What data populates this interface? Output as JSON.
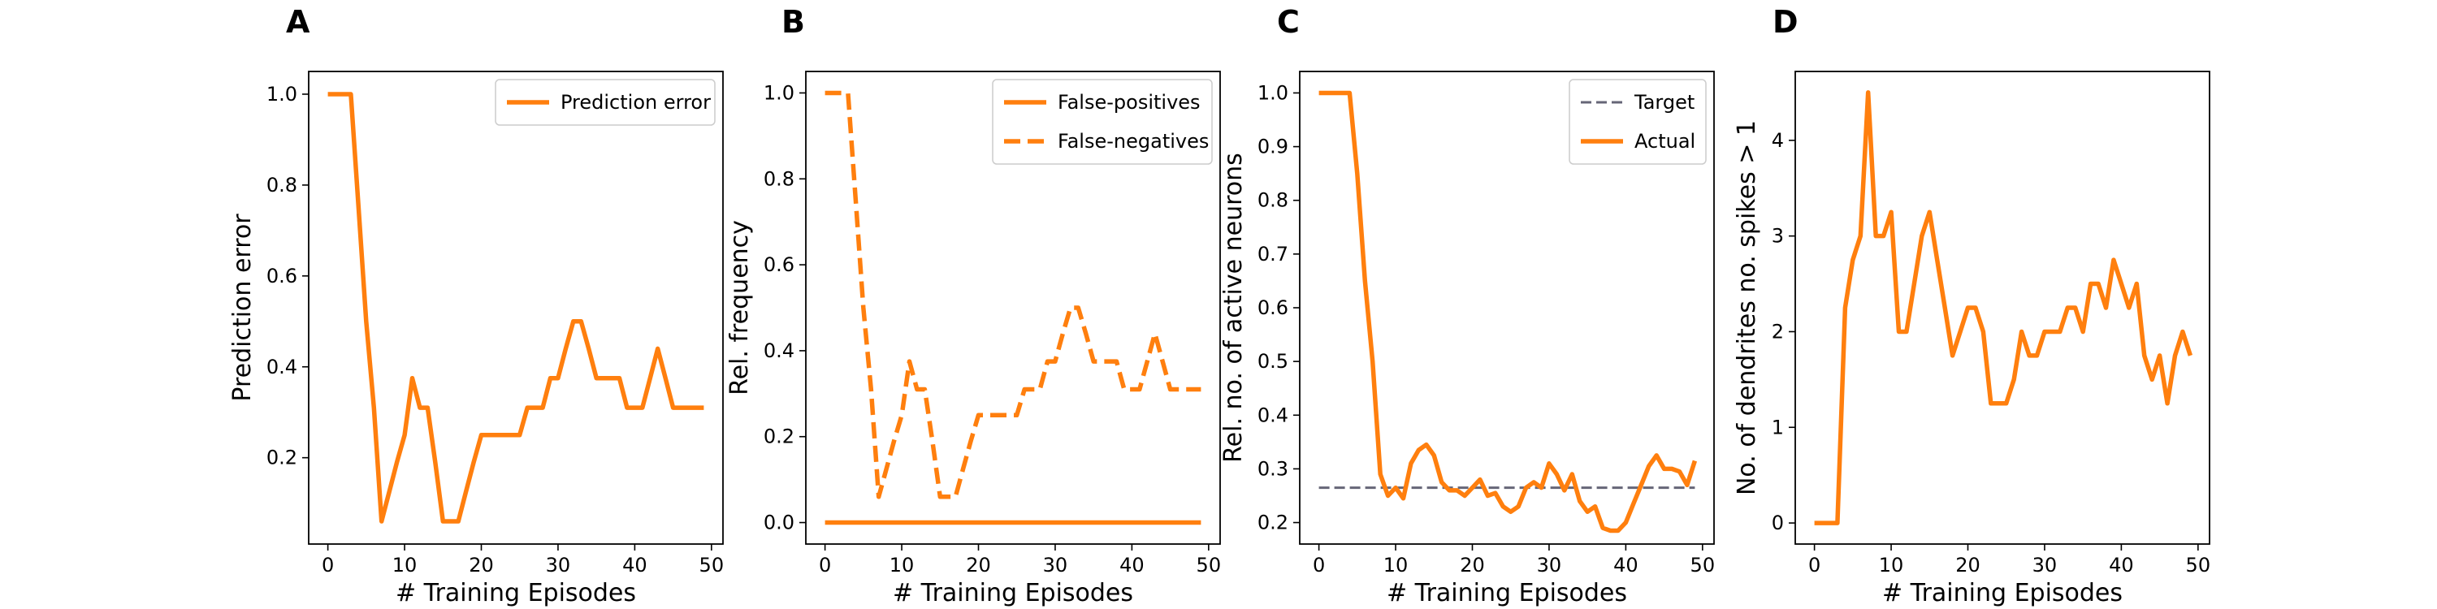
{
  "colors": {
    "orange": "#ff7f0e",
    "target": "#666677",
    "axis": "#000000"
  },
  "chart_data": [
    {
      "panel": "A",
      "type": "line",
      "xlabel": "# Training Episodes",
      "ylabel": "Prediction error",
      "xlim": [
        -2.5,
        51.5
      ],
      "ylim": [
        0.01,
        1.05
      ],
      "xticks": [
        0,
        10,
        20,
        30,
        40,
        50
      ],
      "yticks": [
        0.2,
        0.4,
        0.6,
        0.8,
        1.0
      ],
      "ytick_labels": [
        "0.2",
        "0.4",
        "0.6",
        "0.8",
        "1.0"
      ],
      "legend": "top-right",
      "series": [
        {
          "name": "Prediction error",
          "style": "solid",
          "x": [
            0,
            1,
            2,
            3,
            4,
            5,
            6,
            7,
            8,
            9,
            10,
            11,
            12,
            13,
            14,
            15,
            16,
            17,
            18,
            19,
            20,
            21,
            22,
            23,
            24,
            25,
            26,
            27,
            28,
            29,
            30,
            31,
            32,
            33,
            34,
            35,
            36,
            37,
            38,
            39,
            40,
            41,
            42,
            43,
            44,
            45,
            46,
            47,
            48,
            49
          ],
          "y": [
            1.0,
            1.0,
            1.0,
            1.0,
            0.75,
            0.5,
            0.31,
            0.06,
            0.125,
            0.19,
            0.25,
            0.375,
            0.31,
            0.31,
            0.19,
            0.06,
            0.06,
            0.06,
            0.125,
            0.19,
            0.25,
            0.25,
            0.25,
            0.25,
            0.25,
            0.25,
            0.31,
            0.31,
            0.31,
            0.375,
            0.375,
            0.44,
            0.5,
            0.5,
            0.44,
            0.375,
            0.375,
            0.375,
            0.375,
            0.31,
            0.31,
            0.31,
            0.375,
            0.44,
            0.375,
            0.31,
            0.31,
            0.31,
            0.31,
            0.31
          ]
        }
      ]
    },
    {
      "panel": "B",
      "type": "line",
      "xlabel": "# Training Episodes",
      "ylabel": "Rel. frequency",
      "xlim": [
        -2.5,
        51.5
      ],
      "ylim": [
        -0.05,
        1.05
      ],
      "xticks": [
        0,
        10,
        20,
        30,
        40,
        50
      ],
      "yticks": [
        0.0,
        0.2,
        0.4,
        0.6,
        0.8,
        1.0
      ],
      "ytick_labels": [
        "0.0",
        "0.2",
        "0.4",
        "0.6",
        "0.8",
        "1.0"
      ],
      "legend": "top-right",
      "series": [
        {
          "name": "False-positives",
          "style": "solid",
          "x": [
            0,
            49
          ],
          "y": [
            0.0,
            0.0
          ]
        },
        {
          "name": "False-negatives",
          "style": "dashed",
          "x": [
            0,
            1,
            2,
            3,
            4,
            5,
            6,
            7,
            8,
            9,
            10,
            11,
            12,
            13,
            14,
            15,
            16,
            17,
            18,
            19,
            20,
            21,
            22,
            23,
            24,
            25,
            26,
            27,
            28,
            29,
            30,
            31,
            32,
            33,
            34,
            35,
            36,
            37,
            38,
            39,
            40,
            41,
            42,
            43,
            44,
            45,
            46,
            47,
            48,
            49
          ],
          "y": [
            1.0,
            1.0,
            1.0,
            1.0,
            0.75,
            0.5,
            0.31,
            0.06,
            0.125,
            0.19,
            0.25,
            0.375,
            0.31,
            0.31,
            0.19,
            0.06,
            0.06,
            0.06,
            0.125,
            0.19,
            0.25,
            0.25,
            0.25,
            0.25,
            0.25,
            0.25,
            0.31,
            0.31,
            0.31,
            0.375,
            0.375,
            0.44,
            0.5,
            0.5,
            0.44,
            0.375,
            0.375,
            0.375,
            0.375,
            0.31,
            0.31,
            0.31,
            0.375,
            0.44,
            0.375,
            0.31,
            0.31,
            0.31,
            0.31,
            0.31
          ]
        }
      ]
    },
    {
      "panel": "C",
      "type": "line",
      "xlabel": "# Training Episodes",
      "ylabel": "Rel. no. of active neurons",
      "xlim": [
        -2.5,
        51.5
      ],
      "ylim": [
        0.16,
        1.04
      ],
      "xticks": [
        0,
        10,
        20,
        30,
        40,
        50
      ],
      "yticks": [
        0.2,
        0.3,
        0.4,
        0.5,
        0.6,
        0.7,
        0.8,
        0.9,
        1.0
      ],
      "ytick_labels": [
        "0.2",
        "0.3",
        "0.4",
        "0.5",
        "0.6",
        "0.7",
        "0.8",
        "0.9",
        "1.0"
      ],
      "legend": "top-right",
      "series": [
        {
          "name": "Target",
          "style": "dashed-thin",
          "x": [
            0,
            49
          ],
          "y": [
            0.265,
            0.265
          ]
        },
        {
          "name": "Actual",
          "style": "solid",
          "x": [
            0,
            1,
            2,
            3,
            4,
            5,
            6,
            7,
            8,
            9,
            10,
            11,
            12,
            13,
            14,
            15,
            16,
            17,
            18,
            19,
            20,
            21,
            22,
            23,
            24,
            25,
            26,
            27,
            28,
            29,
            30,
            31,
            32,
            33,
            34,
            35,
            36,
            37,
            38,
            39,
            40,
            41,
            42,
            43,
            44,
            45,
            46,
            47,
            48,
            49
          ],
          "y": [
            1.0,
            1.0,
            1.0,
            1.0,
            1.0,
            0.85,
            0.65,
            0.5,
            0.29,
            0.25,
            0.265,
            0.245,
            0.31,
            0.335,
            0.345,
            0.325,
            0.275,
            0.26,
            0.26,
            0.25,
            0.265,
            0.28,
            0.25,
            0.255,
            0.23,
            0.22,
            0.23,
            0.265,
            0.275,
            0.265,
            0.31,
            0.29,
            0.26,
            0.29,
            0.24,
            0.22,
            0.23,
            0.19,
            0.185,
            0.185,
            0.2,
            0.235,
            0.27,
            0.305,
            0.325,
            0.3,
            0.3,
            0.295,
            0.27,
            0.315
          ]
        }
      ]
    },
    {
      "panel": "D",
      "type": "line",
      "xlabel": "# Training Episodes",
      "ylabel": "No. of dendrites no. spikes > 1",
      "xlim": [
        -2.5,
        51.5
      ],
      "ylim": [
        -0.22,
        4.72
      ],
      "xticks": [
        0,
        10,
        20,
        30,
        40,
        50
      ],
      "yticks": [
        0,
        1,
        2,
        3,
        4
      ],
      "ytick_labels": [
        "0",
        "1",
        "2",
        "3",
        "4"
      ],
      "legend": "none",
      "series": [
        {
          "style": "solid",
          "x": [
            0,
            1,
            2,
            3,
            4,
            5,
            6,
            7,
            8,
            9,
            10,
            11,
            12,
            13,
            14,
            15,
            16,
            17,
            18,
            19,
            20,
            21,
            22,
            23,
            24,
            25,
            26,
            27,
            28,
            29,
            30,
            31,
            32,
            33,
            34,
            35,
            36,
            37,
            38,
            39,
            40,
            41,
            42,
            43,
            44,
            45,
            46,
            47,
            48,
            49
          ],
          "y": [
            0,
            0,
            0,
            0,
            2.25,
            2.75,
            3.0,
            4.5,
            3.0,
            3.0,
            3.25,
            2.0,
            2.0,
            2.5,
            3.0,
            3.25,
            2.75,
            2.25,
            1.75,
            2.0,
            2.25,
            2.25,
            2.0,
            1.25,
            1.25,
            1.25,
            1.5,
            2.0,
            1.75,
            1.75,
            2.0,
            2.0,
            2.0,
            2.25,
            2.25,
            2.0,
            2.5,
            2.5,
            2.25,
            2.75,
            2.5,
            2.25,
            2.5,
            1.75,
            1.5,
            1.75,
            1.25,
            1.75,
            2.0,
            1.75
          ]
        }
      ]
    }
  ]
}
